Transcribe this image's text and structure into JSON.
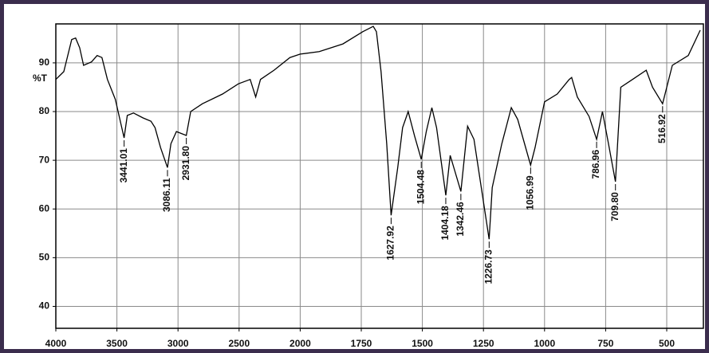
{
  "chart_data": {
    "type": "line",
    "ylabel": "%T",
    "x": [
      4000,
      3935,
      3870,
      3838,
      3805,
      3773,
      3708,
      3662,
      3623,
      3578,
      3513,
      3441.01,
      3415,
      3364,
      3286,
      3221,
      3188,
      3143,
      3086.11,
      3058,
      3013,
      2931.8,
      2896,
      2800,
      2636,
      2506,
      2409,
      2364,
      2325,
      2214,
      2084,
      2000,
      1922,
      1825,
      1744,
      1701,
      1688,
      1669,
      1646,
      1627.92,
      1601,
      1581,
      1558,
      1532,
      1504.48,
      1484,
      1461,
      1442,
      1404.18,
      1386,
      1342.46,
      1315,
      1289,
      1226.73,
      1214,
      1175,
      1136,
      1110,
      1056.99,
      1039,
      1000,
      948,
      899,
      889,
      866,
      818,
      786.96,
      763,
      737,
      709.8,
      688,
      640,
      584,
      558,
      516.92,
      477,
      412,
      363
    ],
    "series": [
      {
        "color": "#000000",
        "values": [
          86.6,
          88.2,
          94.8,
          95.1,
          93.1,
          89.5,
          90.2,
          91.5,
          91.1,
          86.6,
          82.5,
          74.6,
          79.2,
          79.7,
          78.7,
          78.0,
          76.7,
          72.6,
          68.5,
          73.4,
          75.9,
          75.1,
          80,
          81.6,
          83.6,
          85.7,
          86.6,
          83,
          86.6,
          88.5,
          91.1,
          91.8,
          92.3,
          93.9,
          96.4,
          97.5,
          96.4,
          88.2,
          73.4,
          58.7,
          68.5,
          76.7,
          80,
          75,
          70.2,
          75.9,
          80.8,
          76.7,
          62.8,
          71,
          63.6,
          77,
          74.3,
          53.8,
          64.4,
          73.4,
          80.8,
          78.4,
          69,
          72.6,
          82,
          83.6,
          86.6,
          87,
          83,
          79,
          74.3,
          80,
          73,
          65.6,
          85,
          86.6,
          88.5,
          85,
          81.6,
          89.5,
          91.5,
          96.7
        ]
      }
    ],
    "annotations": [
      {
        "text": "3441.01",
        "x": 3441.01,
        "y": 74.6
      },
      {
        "text": "3086.11",
        "x": 3086.11,
        "y": 68.5
      },
      {
        "text": "2931.80",
        "x": 2931.8,
        "y": 75.1
      },
      {
        "text": "1627.92",
        "x": 1627.92,
        "y": 58.7
      },
      {
        "text": "1504.48",
        "x": 1504.48,
        "y": 70.2
      },
      {
        "text": "1404.18",
        "x": 1404.18,
        "y": 62.8
      },
      {
        "text": "1342.46",
        "x": 1342.46,
        "y": 63.6
      },
      {
        "text": "1226.73",
        "x": 1226.73,
        "y": 53.8
      },
      {
        "text": "1056.99",
        "x": 1056.99,
        "y": 69
      },
      {
        "text": "786.96",
        "x": 786.96,
        "y": 74.3
      },
      {
        "text": "709.80",
        "x": 709.8,
        "y": 65.6
      },
      {
        "text": "516.92",
        "x": 516.92,
        "y": 81.6
      }
    ],
    "xlim": [
      4000,
      350
    ],
    "xticks": [
      4000,
      3500,
      3000,
      2500,
      2000,
      1750,
      1500,
      1250,
      1000,
      750,
      500
    ],
    "ylim": [
      35.5,
      98
    ],
    "yticks": [
      40,
      50,
      60,
      70,
      80,
      90
    ],
    "grid": true
  }
}
